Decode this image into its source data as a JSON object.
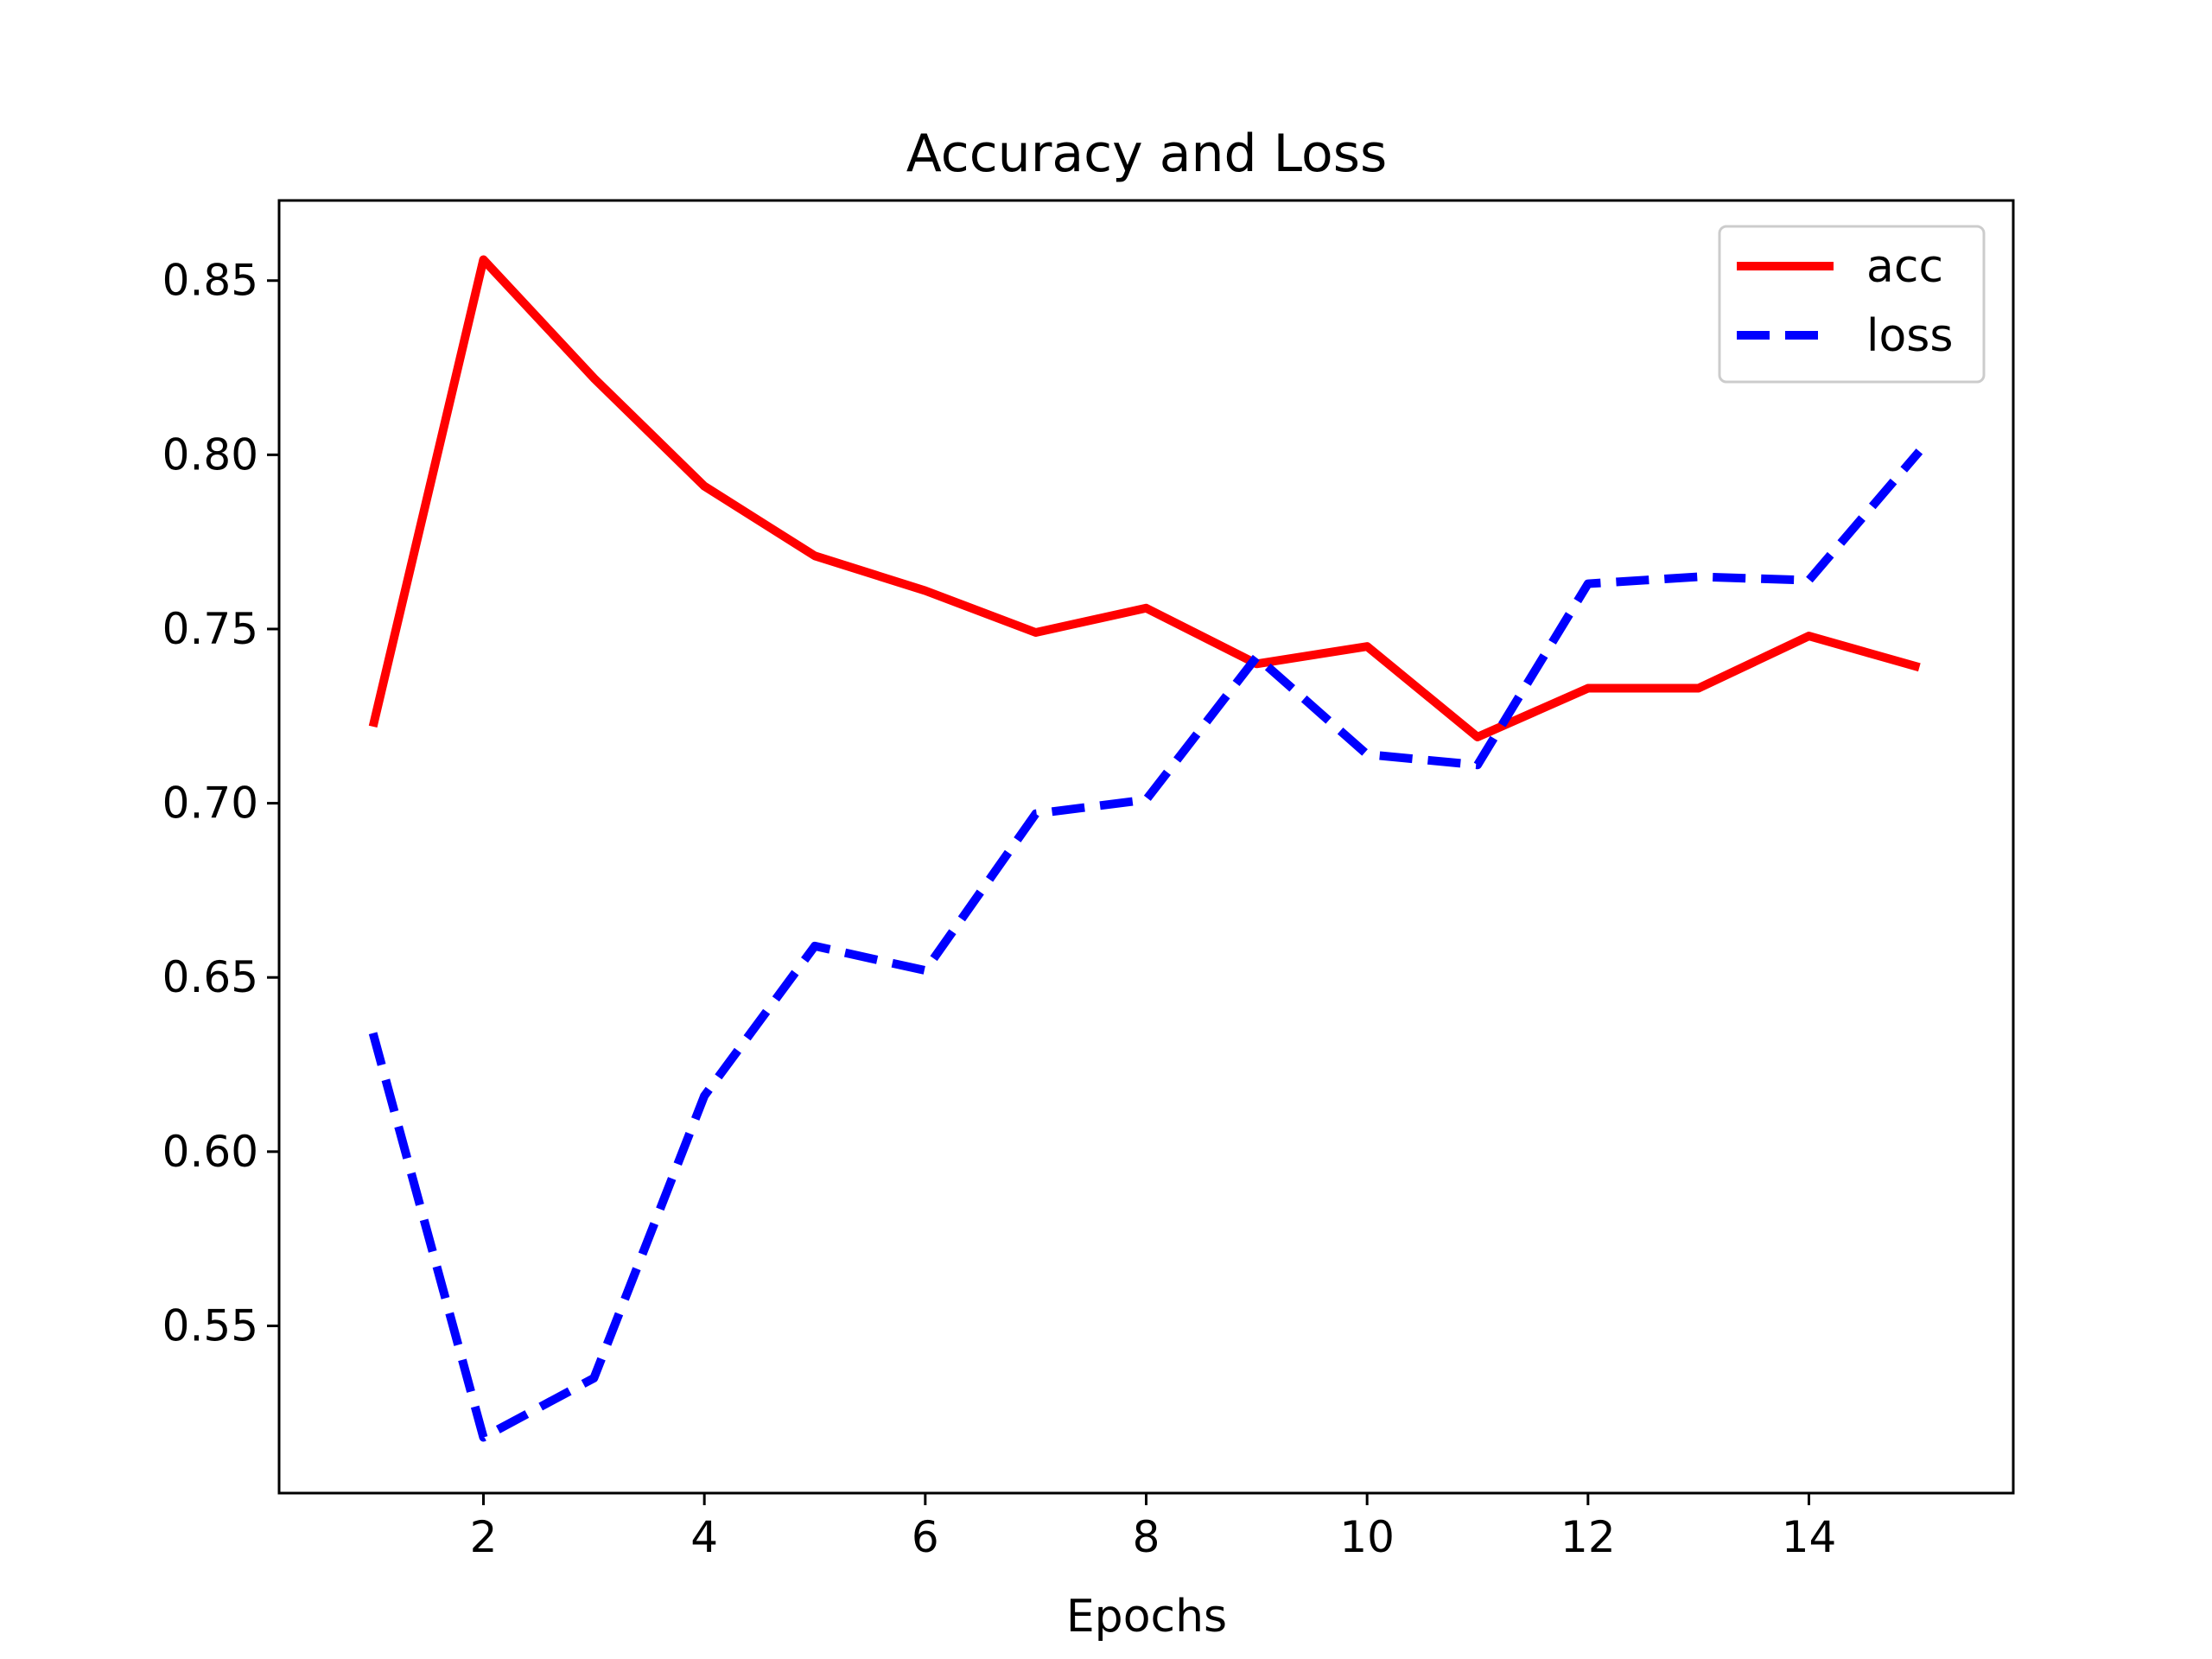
{
  "chart_data": {
    "type": "line",
    "title": "Accuracy and Loss",
    "xlabel": "Epochs",
    "ylabel": "",
    "xlim": [
      0.15,
      15.85
    ],
    "ylim": [
      0.502,
      0.873
    ],
    "xticks": [
      2,
      4,
      6,
      8,
      10,
      12,
      14
    ],
    "yticks": [
      0.55,
      0.6,
      0.65,
      0.7,
      0.75,
      0.8,
      0.85
    ],
    "grid": false,
    "legend_position": "top-right",
    "x": [
      1,
      2,
      3,
      4,
      5,
      6,
      7,
      8,
      9,
      10,
      11,
      12,
      13,
      14,
      15
    ],
    "series": [
      {
        "name": "acc",
        "color": "#ff0000",
        "style": "solid",
        "values": [
          0.722,
          0.856,
          0.822,
          0.791,
          0.771,
          0.761,
          0.749,
          0.756,
          0.74,
          0.745,
          0.719,
          0.733,
          0.733,
          0.748,
          0.739
        ]
      },
      {
        "name": "loss",
        "color": "#0000ff",
        "style": "dashed",
        "values": [
          0.634,
          0.518,
          0.535,
          0.616,
          0.659,
          0.652,
          0.697,
          0.701,
          0.742,
          0.714,
          0.711,
          0.763,
          0.765,
          0.764,
          0.801
        ]
      }
    ]
  }
}
